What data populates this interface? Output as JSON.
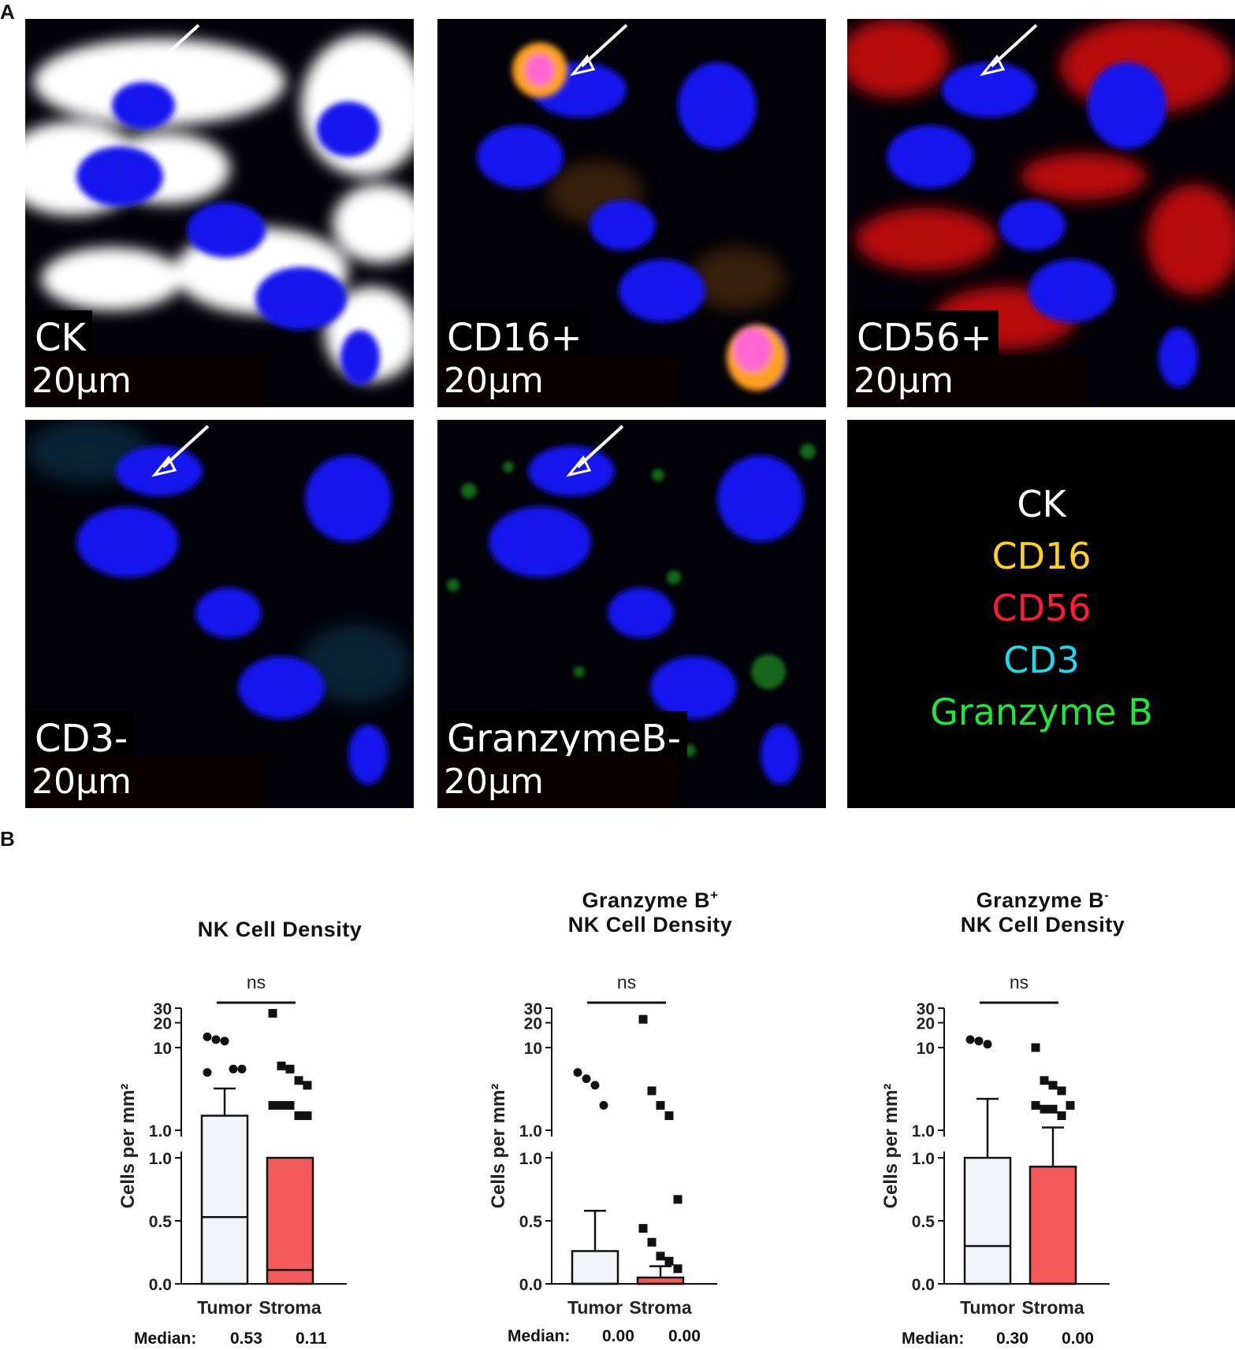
{
  "panels": {
    "a_label": "A",
    "b_label": "B"
  },
  "micrographs": [
    {
      "marker": "CK",
      "scale": "20µm",
      "stain_color": "#ffffff"
    },
    {
      "marker": "CD16+",
      "scale": "20µm",
      "stain_color": "#f5a623"
    },
    {
      "marker": "CD56+",
      "scale": "20µm",
      "stain_color": "#ff1a1a"
    },
    {
      "marker": "CD3-",
      "scale": "20µm",
      "stain_color": "#1a9fb0"
    },
    {
      "marker": "GranzymeB-",
      "scale": "20µm",
      "stain_color": "#22c82a"
    }
  ],
  "legend": [
    {
      "label": "CK",
      "color": "#ffffff"
    },
    {
      "label": "CD16",
      "color": "#ffd21a"
    },
    {
      "label": "CD56",
      "color": "#ff1a35"
    },
    {
      "label": "CD3",
      "color": "#22d8e8"
    },
    {
      "label": "Granzyme B",
      "color": "#1ee83a"
    }
  ],
  "median_label": "Median:",
  "chart_data": [
    {
      "type": "bar",
      "title_line1": "NK Cell Density",
      "title_sup": "",
      "title_line2": "",
      "ylabel": "Cells per mm²",
      "y_axis": "broken: linear 0–1.0 lower segment, log 1.0–30 upper segment",
      "yticks_lower": [
        "0.0",
        "0.5",
        "1.0"
      ],
      "yticks_upper": [
        "1.0",
        "10",
        "20",
        "30"
      ],
      "categories": [
        "Tumor",
        "Stroma"
      ],
      "bar_means": [
        1.5,
        1.0
      ],
      "error_upper": [
        3.2,
        null
      ],
      "medians": [
        0.53,
        0.11
      ],
      "median_text": [
        "0.53",
        "0.11"
      ],
      "bar_colors": [
        "#f3f4f8",
        "#f55a5a"
      ],
      "significance": "ns",
      "points": [
        [
          13.5,
          12.5,
          12,
          5.5,
          5.5,
          5
        ],
        [
          26,
          6,
          5.5,
          4,
          3.5,
          2,
          2,
          2,
          1.5,
          1.5
        ]
      ]
    },
    {
      "type": "bar",
      "title_line1": "Granzyme B",
      "title_sup": "+",
      "title_line2": "NK Cell Density",
      "ylabel": "Cells per mm²",
      "y_axis": "broken: linear 0–1.0 lower segment, log 1.0–30 upper segment",
      "yticks_lower": [
        "0.0",
        "0.5",
        "1.0"
      ],
      "yticks_upper": [
        "1.0",
        "10",
        "20",
        "30"
      ],
      "categories": [
        "Tumor",
        "Stroma"
      ],
      "bar_means": [
        0.26,
        0.05
      ],
      "error_upper": [
        0.58,
        0.14
      ],
      "medians": [
        0.0,
        0.0
      ],
      "median_text": [
        "0.00",
        "0.00"
      ],
      "bar_colors": [
        "#f3f4f8",
        "#f55a5a"
      ],
      "significance": "ns",
      "points": [
        [
          5,
          4.2,
          3.5,
          2
        ],
        [
          22,
          3,
          2,
          1.5,
          0.67,
          0.44,
          0.33,
          0.22,
          0.18,
          0.12
        ]
      ]
    },
    {
      "type": "bar",
      "title_line1": "Granzyme B",
      "title_sup": "-",
      "title_line2": "NK Cell Density",
      "ylabel": "Cells per mm²",
      "y_axis": "broken: linear 0–1.0 lower segment, log 1.0–30 upper segment",
      "yticks_lower": [
        "0.0",
        "0.5",
        "1.0"
      ],
      "yticks_upper": [
        "1.0",
        "10",
        "20",
        "30"
      ],
      "categories": [
        "Tumor",
        "Stroma"
      ],
      "bar_means": [
        1.0,
        0.93
      ],
      "error_upper": [
        2.4,
        1.08
      ],
      "medians": [
        0.3,
        0.0
      ],
      "median_text": [
        "0.30",
        "0.00"
      ],
      "bar_colors": [
        "#f3f4f8",
        "#f55a5a"
      ],
      "significance": "ns",
      "points": [
        [
          12.5,
          12,
          11
        ],
        [
          10,
          4,
          3.5,
          3,
          2,
          2,
          1.8,
          1.8,
          1.5
        ]
      ]
    }
  ]
}
